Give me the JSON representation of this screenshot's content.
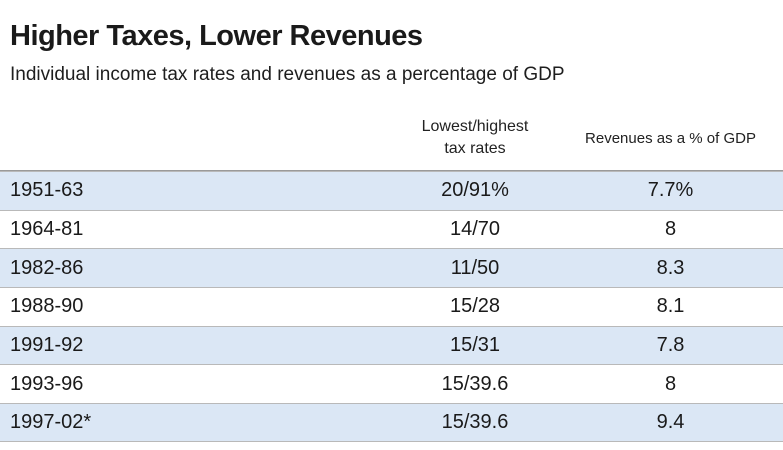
{
  "chart_data": {
    "type": "table",
    "title": "Higher Taxes, Lower Revenues",
    "subtitle": "Individual income tax rates and revenues as a percentage of GDP",
    "columns": {
      "period": "",
      "rates_line1": "Lowest/highest",
      "rates_line2": "tax rates",
      "revenue": "Revenues as a % of GDP"
    },
    "rows": [
      {
        "period": "1951-63",
        "rates": "20/91%",
        "revenue": "7.7%",
        "shaded": true
      },
      {
        "period": "1964-81",
        "rates": "14/70",
        "revenue": "8",
        "shaded": false
      },
      {
        "period": "1982-86",
        "rates": "11/50",
        "revenue": "8.3",
        "shaded": true
      },
      {
        "period": "1988-90",
        "rates": "15/28",
        "revenue": "8.1",
        "shaded": false
      },
      {
        "period": "1991-92",
        "rates": "15/31",
        "revenue": "7.8",
        "shaded": true
      },
      {
        "period": "1993-96",
        "rates": "15/39.6",
        "revenue": "8",
        "shaded": false
      },
      {
        "period": "1997-02*",
        "rates": "15/39.6",
        "revenue": "9.4",
        "shaded": true
      }
    ]
  }
}
